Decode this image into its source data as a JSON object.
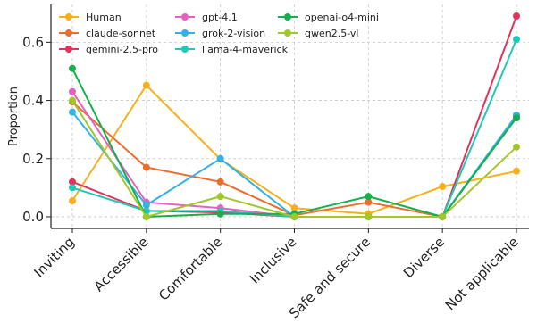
{
  "chart_data": {
    "type": "line",
    "title": "",
    "xlabel": "",
    "ylabel": "Proportion",
    "ylim": [
      -0.04,
      0.73
    ],
    "yticks": [
      0.0,
      0.2,
      0.4,
      0.6
    ],
    "ytick_labels": [
      "0.0",
      "0.2",
      "0.4",
      "0.6"
    ],
    "grid": true,
    "legend_position": "top-left",
    "categories": [
      "Inviting",
      "Accessible",
      "Comfortable",
      "Inclusive",
      "Safe and secure",
      "Diverse",
      "Not applicable"
    ],
    "series": [
      {
        "name": "Human",
        "color": "#f7b01b",
        "values": [
          0.055,
          0.452,
          0.198,
          0.03,
          0.01,
          0.104,
          0.157
        ]
      },
      {
        "name": "claude-sonnet",
        "color": "#eb6e31",
        "values": [
          0.395,
          0.17,
          0.12,
          0.005,
          0.05,
          0.0,
          0.345
        ]
      },
      {
        "name": "gemini-2.5-pro",
        "color": "#e0345a",
        "values": [
          0.12,
          0.02,
          0.015,
          0.0,
          0.0,
          0.0,
          0.69
        ]
      },
      {
        "name": "gpt-4.1",
        "color": "#e860c3",
        "values": [
          0.43,
          0.05,
          0.03,
          0.0,
          0.0,
          0.0,
          0.345
        ]
      },
      {
        "name": "grok-2-vision",
        "color": "#34b2e8",
        "values": [
          0.36,
          0.04,
          0.2,
          0.0,
          0.0,
          0.0,
          0.35
        ]
      },
      {
        "name": "llama-4-maverick",
        "color": "#1fc8b8",
        "values": [
          0.1,
          0.02,
          0.02,
          0.0,
          0.0,
          0.0,
          0.61
        ]
      },
      {
        "name": "openai-o4-mini",
        "color": "#14b04d",
        "values": [
          0.51,
          0.0,
          0.01,
          0.01,
          0.07,
          0.0,
          0.34
        ]
      },
      {
        "name": "qwen2.5-vl",
        "color": "#a2c728",
        "values": [
          0.4,
          0.0,
          0.07,
          0.0,
          0.0,
          0.0,
          0.24
        ]
      }
    ]
  }
}
